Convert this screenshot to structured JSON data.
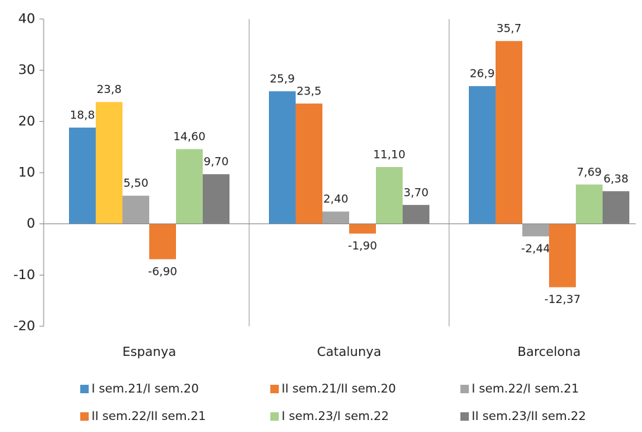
{
  "chart_data": {
    "type": "bar",
    "categories": [
      "Espanya",
      "Catalunya",
      "Barcelona"
    ],
    "series": [
      {
        "name": "I sem.21/I sem.20",
        "color": "#4a90c8",
        "values": [
          18.8,
          25.9,
          26.9
        ],
        "value_labels": [
          "18,8",
          "25,9",
          "26,9"
        ]
      },
      {
        "name": "II sem.21/II sem.20",
        "color": "#ed7d31",
        "point_colors": [
          "#ffc83d",
          "#ed7d31",
          "#ed7d31"
        ],
        "values": [
          23.8,
          23.5,
          35.7
        ],
        "value_labels": [
          "23,8",
          "23,5",
          "35,7"
        ]
      },
      {
        "name": "I sem.22/I sem.21",
        "color": "#a5a5a5",
        "values": [
          5.5,
          2.4,
          -2.44
        ],
        "value_labels": [
          "5,50",
          "2,40",
          "-2,44"
        ]
      },
      {
        "name": "II sem.22/II sem.21",
        "color": "#ed7d31",
        "values": [
          -6.9,
          -1.9,
          -12.37
        ],
        "value_labels": [
          "-6,90",
          "-1,90",
          "-12,37"
        ]
      },
      {
        "name": "I sem.23/I sem.22",
        "color": "#a9d18e",
        "values": [
          14.6,
          11.1,
          7.69
        ],
        "value_labels": [
          "14,60",
          "11,10",
          "7,69"
        ]
      },
      {
        "name": "II sem.23/II sem.22",
        "color": "#7f7f7f",
        "values": [
          9.7,
          3.7,
          6.38
        ],
        "value_labels": [
          "9,70",
          "3,70",
          "6,38"
        ]
      }
    ],
    "ylim": [
      -20,
      40
    ],
    "yticks": [
      -20,
      -10,
      0,
      10,
      20,
      30,
      40
    ],
    "grid": false
  }
}
